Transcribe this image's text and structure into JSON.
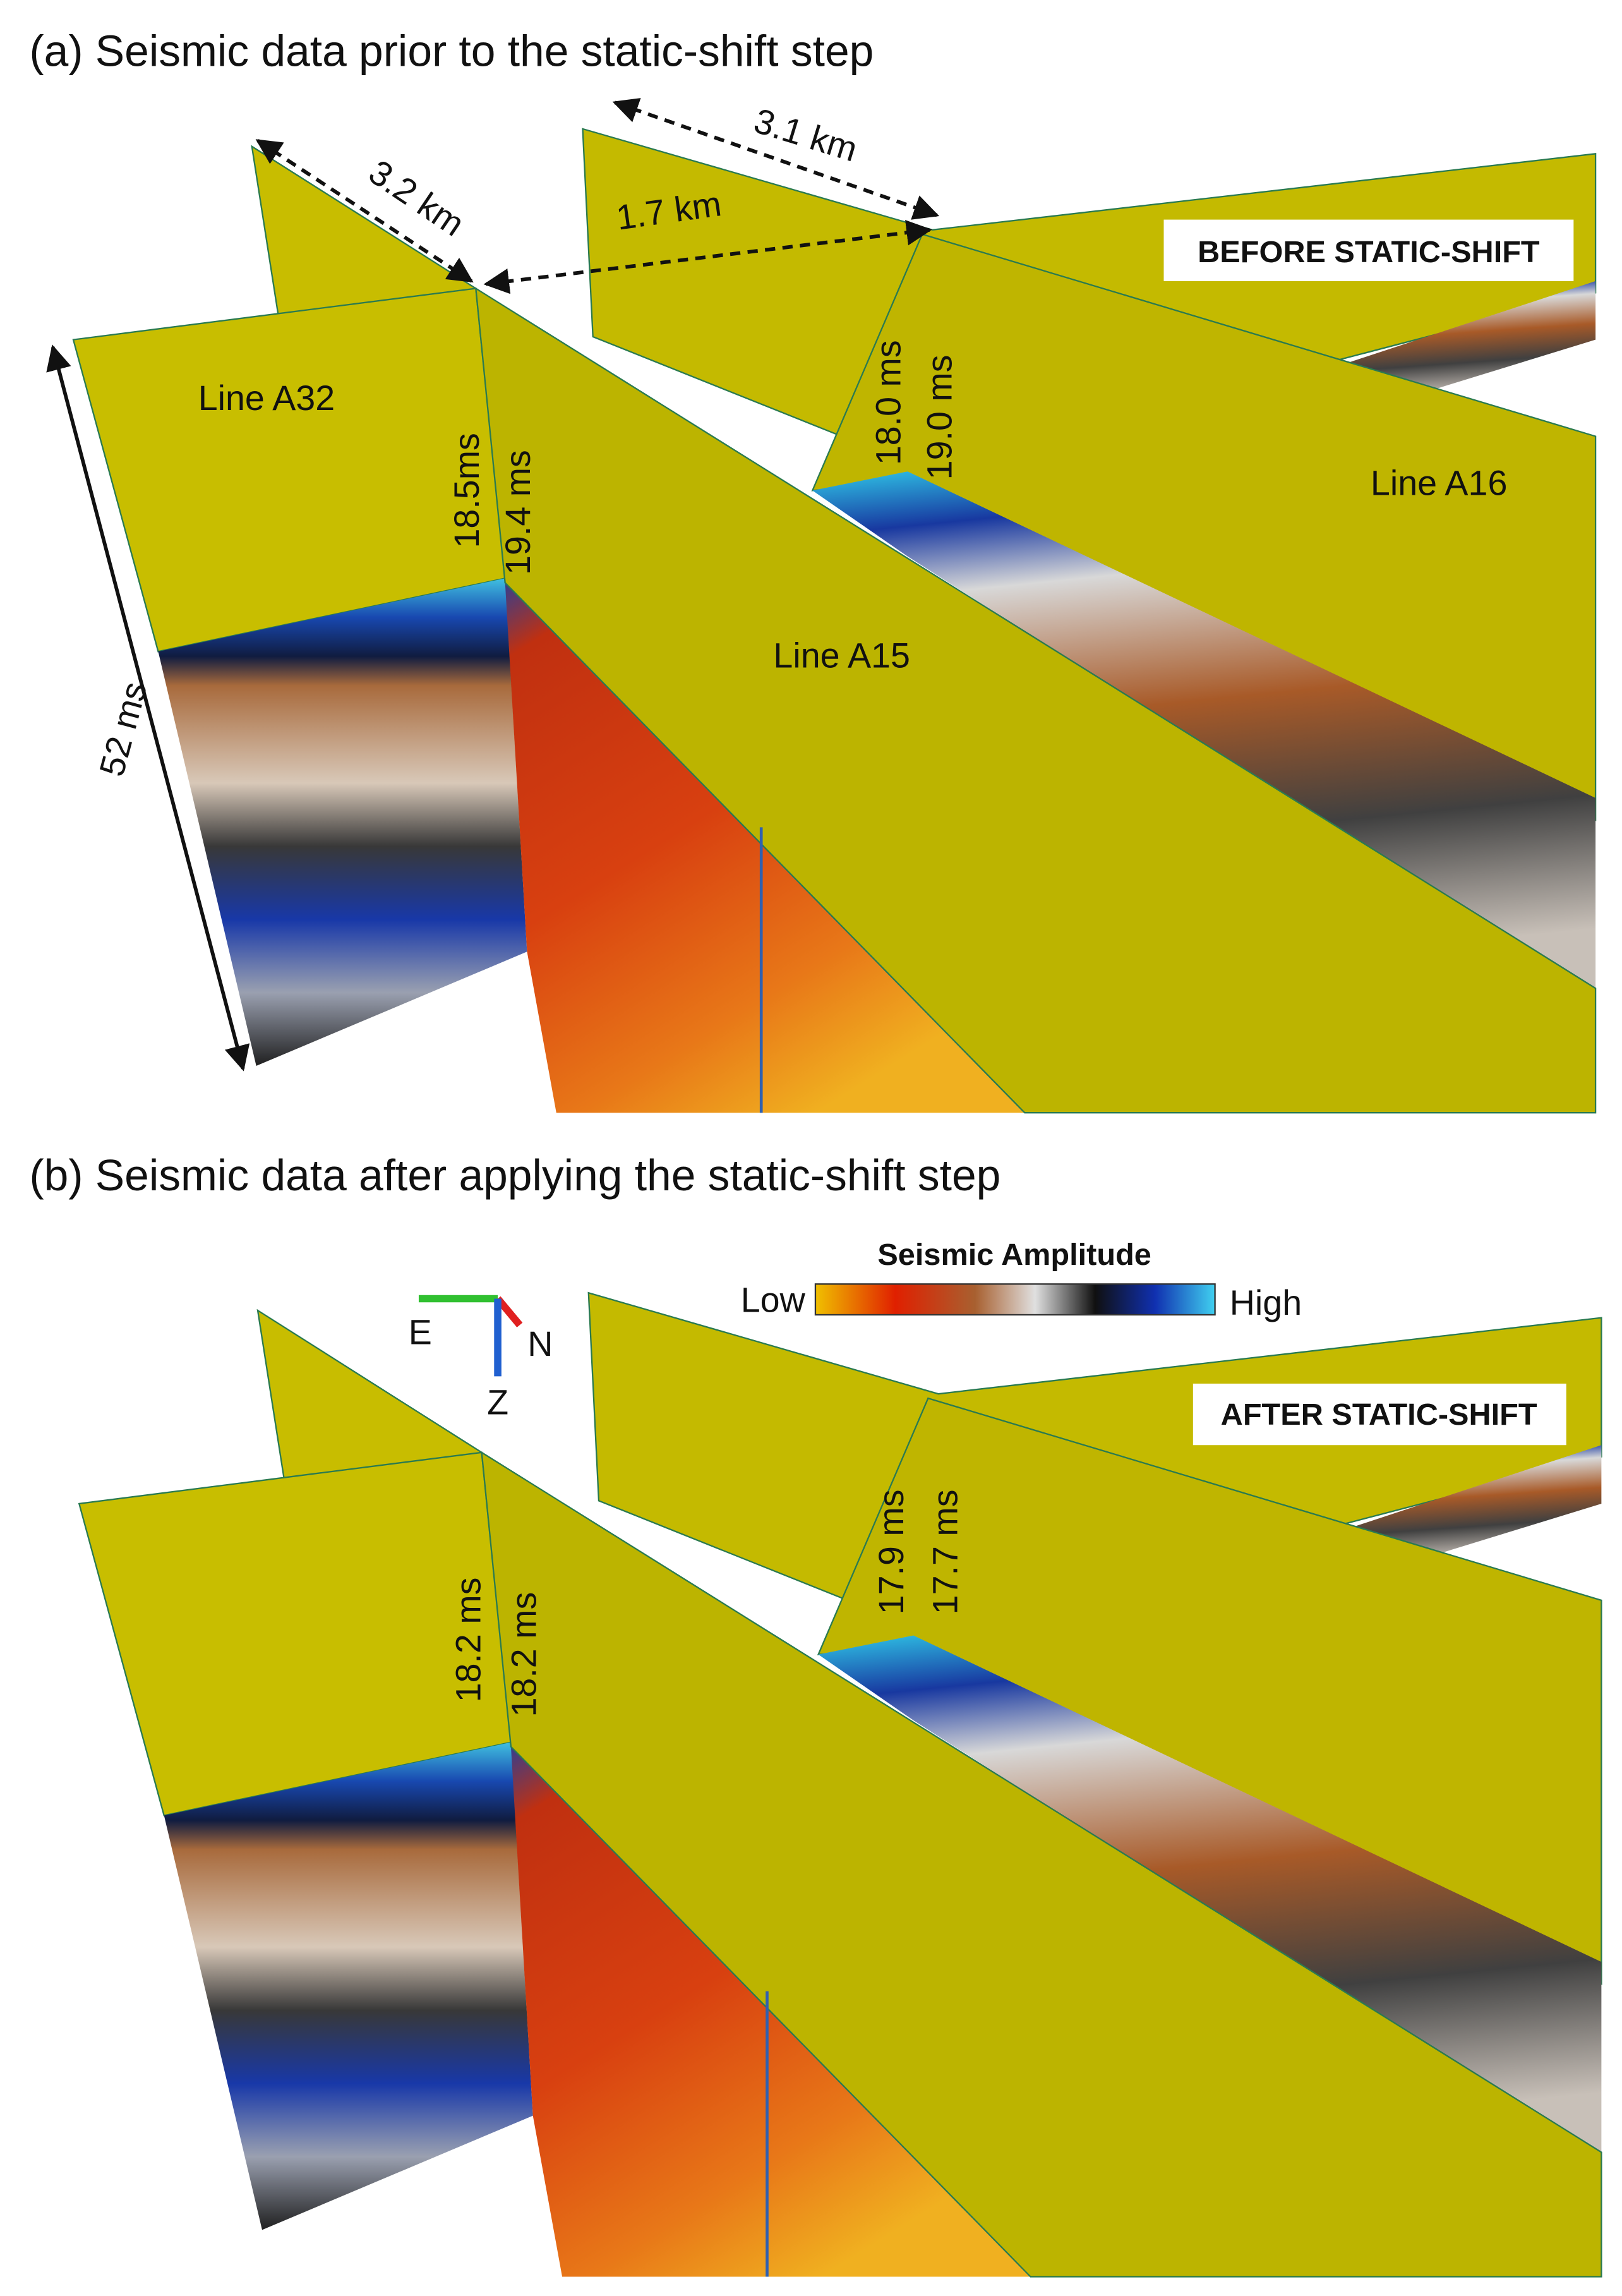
{
  "panel_a": {
    "title": "(a) Seismic data prior to the static-shift step",
    "badge": "BEFORE STATIC-SHIFT",
    "distances": [
      "3.2 km",
      "3.1 km",
      "1.7 km"
    ],
    "depth": "52 ms",
    "lines": [
      "Line A32",
      "Line A15",
      "Line A16"
    ],
    "times": [
      "18.5ms",
      "19.4 ms",
      "18.0 ms",
      "19.0 ms"
    ]
  },
  "panel_b": {
    "title": "(b) Seismic data after applying the static-shift step",
    "badge": "AFTER STATIC-SHIFT",
    "times": [
      "18.2 ms",
      "18.2 ms",
      "17.9 ms",
      "17.7 ms"
    ],
    "colorbar": {
      "title": "Seismic Amplitude",
      "low": "Low",
      "high": "High"
    },
    "axes": [
      "E",
      "N",
      "Z"
    ]
  }
}
